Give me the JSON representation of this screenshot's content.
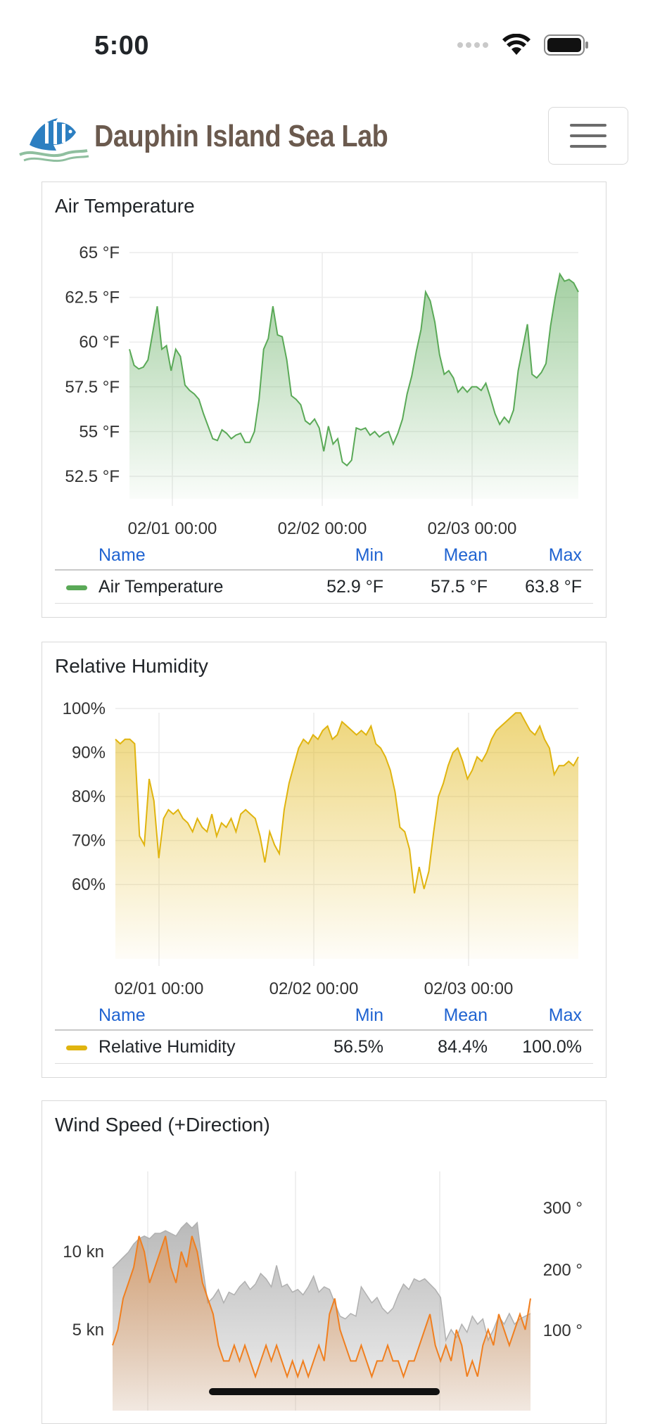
{
  "status_bar": {
    "time": "5:00"
  },
  "header": {
    "brand": "Dauphin Island Sea Lab"
  },
  "colors": {
    "air": "#5aa957",
    "humidity": "#e0b40f",
    "wind_speed": "#f07f1f",
    "wind_direction": "#a8a8a8",
    "link": "#1f63d1"
  },
  "stats_headers": {
    "name": "Name",
    "min": "Min",
    "mean": "Mean",
    "max": "Max"
  },
  "air_card": {
    "title": "Air Temperature",
    "stats": {
      "name": "Air Temperature",
      "min": "52.9 °F",
      "mean": "57.5 °F",
      "max": "63.8 °F"
    }
  },
  "humidity_card": {
    "title": "Relative Humidity",
    "stats": {
      "name": "Relative Humidity",
      "min": "56.5%",
      "mean": "84.4%",
      "max": "100.0%"
    }
  },
  "wind_card": {
    "title": "Wind Speed (+Direction)"
  },
  "chart_data": [
    {
      "type": "area",
      "series": [
        {
          "name": "Air Temperature",
          "values": [
            59.6,
            58.7,
            58.5,
            58.6,
            59.0,
            60.5,
            62.0,
            59.6,
            59.8,
            58.4,
            59.6,
            59.2,
            57.6,
            57.3,
            57.1,
            56.8,
            56.0,
            55.3,
            54.6,
            54.5,
            55.1,
            54.9,
            54.6,
            54.8,
            54.9,
            54.4,
            54.4,
            55.0,
            56.8,
            59.6,
            60.2,
            62.0,
            60.4,
            60.3,
            59.0,
            57.0,
            56.8,
            56.5,
            55.6,
            55.4,
            55.7,
            55.2,
            53.9,
            55.3,
            54.3,
            54.6,
            53.3,
            53.1,
            53.4,
            55.2,
            55.1,
            55.2,
            54.8,
            55.0,
            54.7,
            54.9,
            55.0,
            54.3,
            54.9,
            55.7,
            57.1,
            58.1,
            59.5,
            60.7,
            62.8,
            62.3,
            61.1,
            59.3,
            58.2,
            58.4,
            58.0,
            57.2,
            57.5,
            57.2,
            57.5,
            57.5,
            57.3,
            57.7,
            56.9,
            56.0,
            55.4,
            55.8,
            55.5,
            56.2,
            58.4,
            59.7,
            61.0,
            58.2,
            58.0,
            58.3,
            58.8,
            60.9,
            62.5,
            63.8,
            63.4,
            63.5,
            63.3,
            62.8
          ]
        }
      ],
      "y_ticks": [
        "65 °F",
        "62.5 °F",
        "60 °F",
        "57.5 °F",
        "55 °F",
        "52.5 °F"
      ],
      "x_ticks": [
        "02/01 00:00",
        "02/02 00:00",
        "02/03 00:00"
      ],
      "ylim": [
        52.5,
        65
      ]
    },
    {
      "type": "area",
      "series": [
        {
          "name": "Relative Humidity",
          "values": [
            93,
            92,
            93,
            93,
            92,
            71,
            69,
            84,
            79,
            66,
            75,
            77,
            76,
            77,
            75,
            74,
            72,
            75,
            73,
            72,
            76,
            71,
            74,
            73,
            75,
            72,
            76,
            77,
            76,
            75,
            71,
            65,
            72,
            69,
            67,
            77,
            83,
            87,
            91,
            93,
            92,
            94,
            93,
            95,
            96,
            93,
            94,
            97,
            96,
            95,
            94,
            95,
            94,
            96,
            92,
            91,
            89,
            86,
            81,
            73,
            72,
            68,
            58,
            64,
            59,
            63,
            72,
            80,
            83,
            87,
            90,
            91,
            88,
            84,
            86,
            89,
            88,
            90,
            93,
            95,
            96,
            97,
            98,
            99,
            99,
            97,
            95,
            94,
            96,
            93,
            91,
            85,
            87,
            87,
            88,
            87,
            89
          ]
        }
      ],
      "y_ticks": [
        "100%",
        "90%",
        "80%",
        "70%",
        "60%"
      ],
      "x_ticks": [
        "02/01 00:00",
        "02/02 00:00",
        "02/03 00:00"
      ],
      "ylim": [
        53,
        104
      ]
    },
    {
      "type": "area",
      "series": [
        {
          "name": "Wind Speed",
          "values": [
            4,
            5,
            7,
            8,
            9,
            11,
            10,
            8,
            9,
            10,
            11,
            9,
            8,
            10,
            9,
            11,
            10,
            8,
            7,
            6,
            4,
            3,
            3,
            4,
            3,
            4,
            3,
            2,
            3,
            4,
            3,
            4,
            3,
            2,
            3,
            2,
            3,
            2,
            3,
            4,
            3,
            6,
            7,
            5,
            4,
            3,
            3,
            4,
            3,
            2,
            3,
            3,
            4,
            3,
            3,
            2,
            3,
            3,
            4,
            5,
            6,
            4,
            3,
            4,
            3,
            5,
            4,
            2,
            3,
            2,
            4,
            5,
            4,
            6,
            5,
            4,
            5,
            6,
            5,
            7
          ]
        },
        {
          "name": "Wind Direction",
          "values": [
            235,
            245,
            255,
            265,
            280,
            290,
            295,
            290,
            300,
            300,
            305,
            300,
            295,
            310,
            320,
            310,
            320,
            240,
            170,
            180,
            195,
            170,
            190,
            185,
            200,
            210,
            195,
            205,
            225,
            215,
            200,
            240,
            200,
            205,
            190,
            195,
            185,
            200,
            220,
            190,
            200,
            195,
            170,
            145,
            140,
            150,
            145,
            200,
            185,
            170,
            180,
            160,
            150,
            160,
            185,
            205,
            195,
            215,
            210,
            215,
            205,
            195,
            180,
            100,
            120,
            105,
            130,
            115,
            145,
            130,
            140,
            100,
            120,
            145,
            130,
            150,
            130,
            140,
            145,
            150
          ]
        }
      ],
      "y_ticks_left": [
        "10 kn",
        "5 kn"
      ],
      "y_ticks_right": [
        "300 °",
        "200 °",
        "100 °"
      ]
    }
  ]
}
